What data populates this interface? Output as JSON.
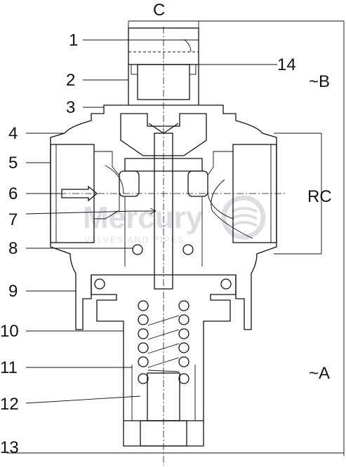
{
  "part_labels": [
    "1",
    "2",
    "3",
    "4",
    "5",
    "6",
    "7",
    "8",
    "9",
    "10",
    "11",
    "12",
    "13",
    "14"
  ],
  "dimension_labels": {
    "c": "C",
    "b": "~B",
    "rc": "RC",
    "a": "~A"
  },
  "watermark": {
    "brand": "Mercury",
    "tagline": "VALVES AND PIPES"
  }
}
